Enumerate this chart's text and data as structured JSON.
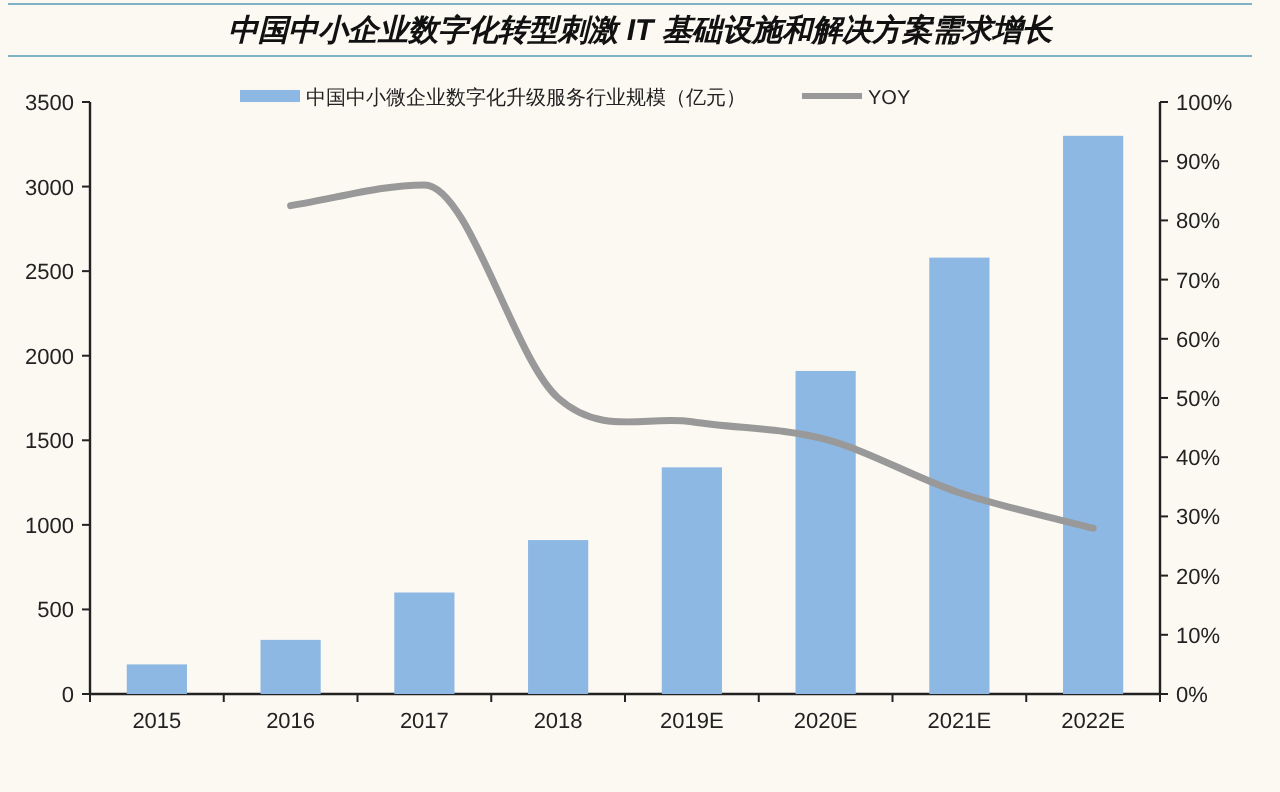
{
  "chart_data": {
    "type": "bar",
    "title": "中国中小企业数字化转型刺激 IT 基础设施和解决方案需求增长",
    "categories": [
      "2015",
      "2016",
      "2017",
      "2018",
      "2019E",
      "2020E",
      "2021E",
      "2022E"
    ],
    "series": [
      {
        "name": "中国中小微企业数字化升级服务行业规模（亿元）",
        "color": "#8db8e3",
        "values": [
          175,
          320,
          600,
          910,
          1340,
          1910,
          2580,
          3300
        ]
      },
      {
        "name": "YOY",
        "type": "line",
        "axis": "y2",
        "color": "#999999",
        "values": [
          null,
          82.5,
          86,
          50,
          46,
          43,
          34,
          28
        ]
      }
    ],
    "ylim": [
      0,
      3500
    ],
    "yticks": [
      0,
      500,
      1000,
      1500,
      2000,
      2500,
      3000,
      3500
    ],
    "y2lim": [
      0,
      100
    ],
    "y2ticks": [
      {
        "value": 0,
        "label": "0%"
      },
      {
        "value": 10,
        "label": "10%"
      },
      {
        "value": 20,
        "label": "20%"
      },
      {
        "value": 30,
        "label": "30%"
      },
      {
        "value": 40,
        "label": "40%"
      },
      {
        "value": 50,
        "label": "50%"
      },
      {
        "value": 60,
        "label": "60%"
      },
      {
        "value": 70,
        "label": "70%"
      },
      {
        "value": 80,
        "label": "80%"
      },
      {
        "value": 90,
        "label": "90%"
      },
      {
        "value": 100,
        "label": "100%"
      }
    ],
    "legend": "top",
    "grid": false
  }
}
